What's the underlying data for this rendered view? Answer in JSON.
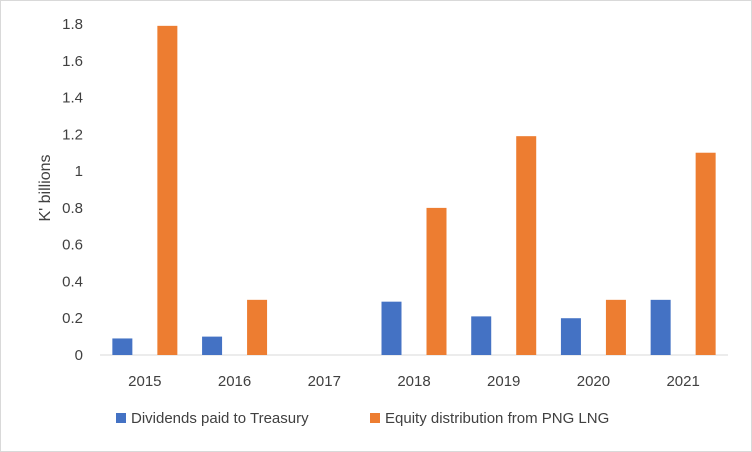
{
  "chart_data": {
    "type": "bar",
    "title": "",
    "xlabel": "",
    "ylabel": "K' billions",
    "ylim": [
      0,
      1.8
    ],
    "yticks": [
      "0",
      "0.2",
      "0.4",
      "0.6",
      "0.8",
      "1",
      "1.2",
      "1.4",
      "1.6",
      "1.8"
    ],
    "categories": [
      "2015",
      "2016",
      "2017",
      "2018",
      "2019",
      "2020",
      "2021"
    ],
    "grid": false,
    "legend_position": "bottom",
    "series": [
      {
        "name": "Dividends paid to Treasury",
        "color": "#4472c4",
        "values": [
          0.09,
          0.1,
          0,
          0.29,
          0.21,
          0.2,
          0.3
        ]
      },
      {
        "name": "Equity distribution from PNG LNG",
        "color": "#ed7d31",
        "values": [
          1.79,
          0.3,
          0,
          0.8,
          1.19,
          0.3,
          1.1
        ]
      }
    ]
  }
}
